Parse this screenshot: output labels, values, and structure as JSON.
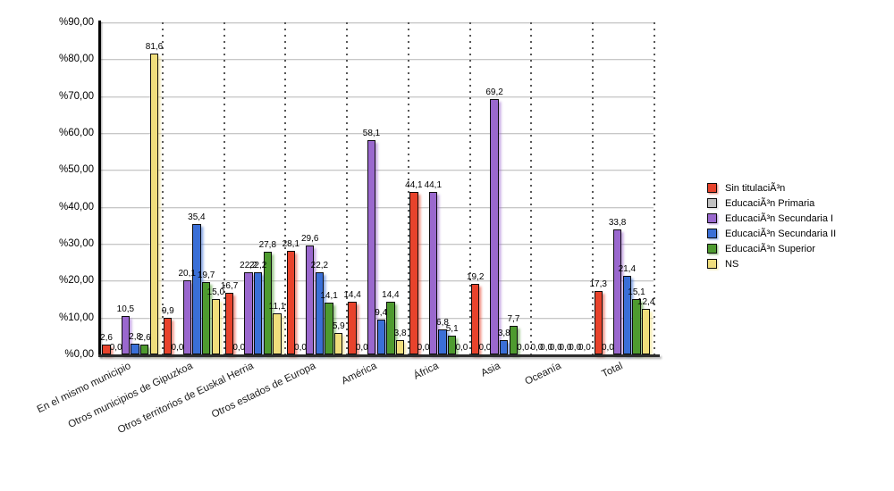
{
  "chart_data": {
    "type": "bar",
    "title": "",
    "categories": [
      "En el mismo municipio",
      "Otros municipios de Gipuzkoa",
      "Otros territorios de Euskal Herria",
      "Otros estados de Europa",
      "América",
      "África",
      "Asia",
      "Oceanía",
      "Total"
    ],
    "series": [
      {
        "name": "Sin titulaciÃ³n",
        "color": "#e8432c",
        "values": [
          2.6,
          9.9,
          16.7,
          28.1,
          14.4,
          44.1,
          19.2,
          0.0,
          17.3
        ]
      },
      {
        "name": "EducaciÃ³n Primaria",
        "color": "#c0c0c0",
        "values": [
          0.0,
          0.0,
          0.0,
          0.0,
          0.0,
          0.0,
          0.0,
          0.0,
          0.0
        ]
      },
      {
        "name": "EducaciÃ³n Secundaria I",
        "color": "#9a68ce",
        "values": [
          10.5,
          20.1,
          22.2,
          29.6,
          58.1,
          44.1,
          69.2,
          0.0,
          33.8
        ]
      },
      {
        "name": "EducaciÃ³n Secundaria II",
        "color": "#3a6fd7",
        "values": [
          2.8,
          35.4,
          22.2,
          22.2,
          9.4,
          6.8,
          3.8,
          0.0,
          21.4
        ]
      },
      {
        "name": "EducaciÃ³n Superior",
        "color": "#4e9b2f",
        "values": [
          2.6,
          19.7,
          27.8,
          14.1,
          14.4,
          5.1,
          7.7,
          0.0,
          15.1
        ]
      },
      {
        "name": "NS",
        "color": "#f0de7c",
        "values": [
          81.6,
          15.0,
          11.1,
          5.9,
          3.8,
          0.0,
          0.0,
          0.0,
          12.4
        ]
      }
    ],
    "ylim": [
      0,
      90
    ],
    "y_tick_labels": [
      "%0,00",
      "%10,00",
      "%20,00",
      "%30,00",
      "%40,00",
      "%50,00",
      "%60,00",
      "%70,00",
      "%80,00",
      "%90,00"
    ],
    "value_label_decimal": "comma",
    "grid": {
      "horizontal": "solid",
      "vertical": "dotted"
    },
    "legend_position": "right",
    "x_tick_rotation_deg": -26
  }
}
